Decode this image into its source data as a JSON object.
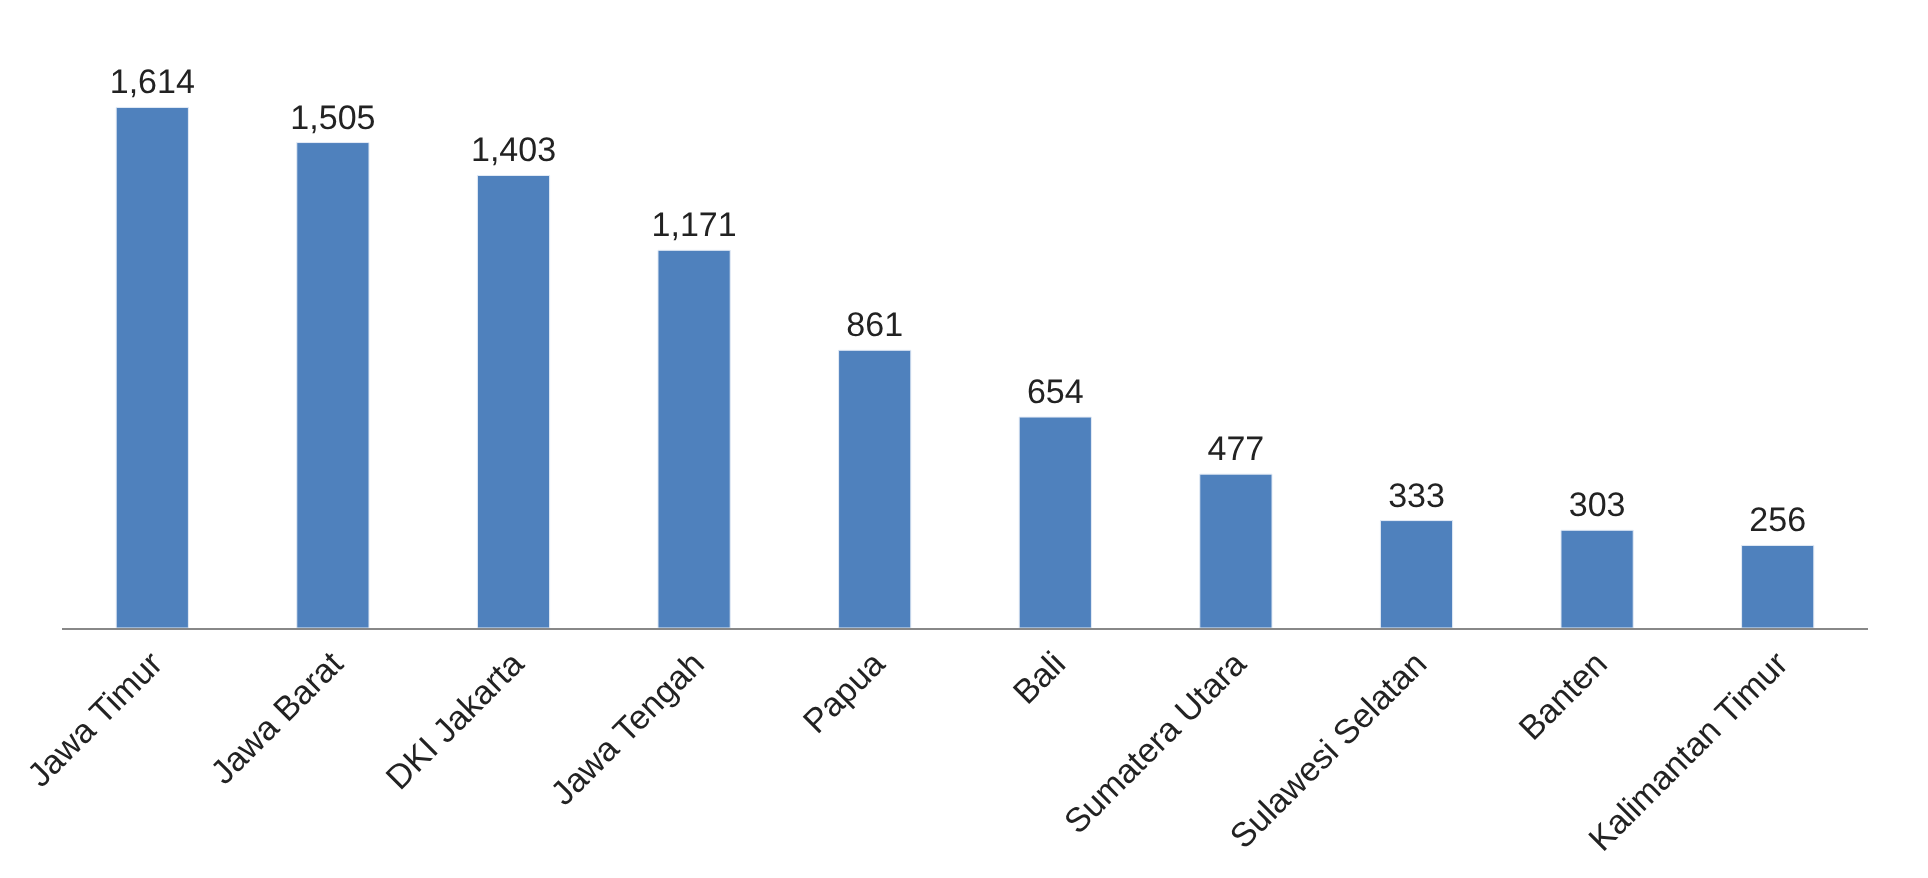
{
  "chart_data": {
    "type": "bar",
    "categories": [
      "Jawa Timur",
      "Jawa Barat",
      "DKI Jakarta",
      "Jawa Tengah",
      "Papua",
      "Bali",
      "Sumatera Utara",
      "Sulawesi Selatan",
      "Banten",
      "Kalimantan Timur"
    ],
    "values": [
      1614,
      1505,
      1403,
      1171,
      861,
      654,
      477,
      333,
      303,
      256
    ],
    "color": "#4f81bd",
    "value_labels": [
      "1,614",
      "1,505",
      "1,403",
      "1,171",
      "861",
      "654",
      "477",
      "333",
      "303",
      "256"
    ]
  }
}
